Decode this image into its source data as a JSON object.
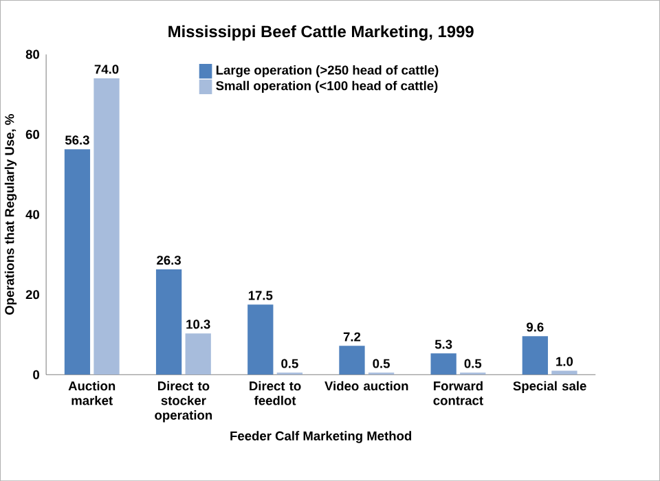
{
  "chart_data": {
    "type": "bar",
    "title": "Mississippi Beef Cattle Marketing, 1999",
    "xlabel": "Feeder Calf Marketing Method",
    "ylabel": "Operations that Regularly Use, %",
    "categories": [
      "Auction market",
      "Direct to stocker operation",
      "Direct to feedlot",
      "Video auction",
      "Forward contract",
      "Special sale"
    ],
    "series": [
      {
        "name": "Large operation (>250 head of cattle)",
        "color": "#4f81bd",
        "values": [
          56.3,
          26.3,
          17.5,
          7.2,
          5.3,
          9.6
        ],
        "value_labels": [
          "56.3",
          "26.3",
          "17.5",
          "7.2",
          "5.3",
          "9.6"
        ]
      },
      {
        "name": "Small operation (<100 head of cattle)",
        "color": "#a7bcdc",
        "values": [
          74.0,
          10.3,
          0.5,
          0.5,
          0.5,
          1.0
        ],
        "value_labels": [
          "74.0",
          "10.3",
          "0.5",
          "0.5",
          "0.5",
          "1.0"
        ]
      }
    ],
    "ylim": [
      0,
      80
    ],
    "yticks": [
      0,
      20,
      40,
      60,
      80
    ],
    "legend": "top",
    "grid": false
  }
}
